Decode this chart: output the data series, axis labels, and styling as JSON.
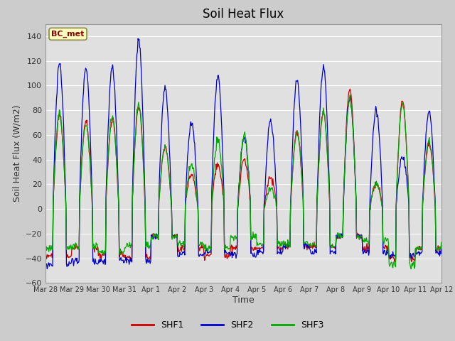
{
  "title": "Soil Heat Flux",
  "xlabel": "Time",
  "ylabel": "Soil Heat Flux (W/m2)",
  "ylim": [
    -60,
    150
  ],
  "yticks": [
    -60,
    -40,
    -20,
    0,
    20,
    40,
    60,
    80,
    100,
    120,
    140
  ],
  "legend_label": "BC_met",
  "series_labels": [
    "SHF1",
    "SHF2",
    "SHF3"
  ],
  "series_colors": [
    "#cc0000",
    "#0000cc",
    "#00aa00"
  ],
  "background_color": "#cccccc",
  "plot_bg_color": "#e0e0e0",
  "x_tick_labels": [
    "Mar 28",
    "Mar 29",
    "Mar 30",
    "Mar 31",
    "Apr 1",
    "Apr 2",
    "Apr 3",
    "Apr 4",
    "Apr 5",
    "Apr 6",
    "Apr 7",
    "Apr 8",
    "Apr 9",
    "Apr 10",
    "Apr 11",
    "Apr 12"
  ],
  "num_days": 15,
  "points_per_day": 48,
  "figsize": [
    6.4,
    4.8
  ],
  "dpi": 100
}
